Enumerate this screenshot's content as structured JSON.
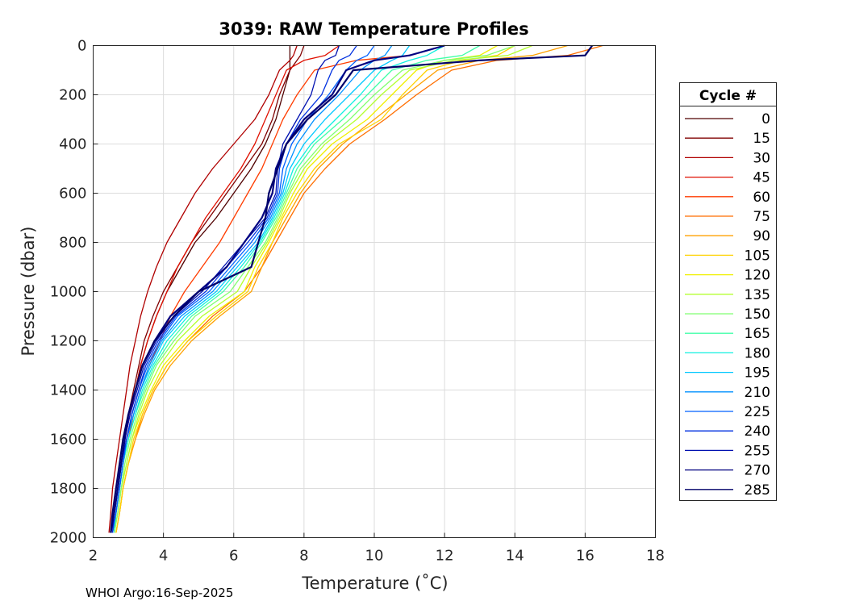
{
  "chart_data": {
    "type": "line",
    "title": "3039: RAW Temperature Profiles",
    "xlabel": "Temperature (˚C)",
    "ylabel": "Pressure (dbar)",
    "xlim": [
      2,
      18
    ],
    "ylim": [
      2000,
      0
    ],
    "y_reversed": true,
    "grid": true,
    "xticks": [
      2,
      4,
      6,
      8,
      10,
      12,
      14,
      16,
      18
    ],
    "yticks": [
      0,
      200,
      400,
      600,
      800,
      1000,
      1200,
      1400,
      1600,
      1800,
      2000
    ],
    "legend": {
      "title": "Cycle #",
      "placement": "right-outside",
      "entries": [
        "0",
        "15",
        "30",
        "45",
        "60",
        "75",
        "90",
        "105",
        "120",
        "135",
        "150",
        "165",
        "180",
        "195",
        "210",
        "225",
        "240",
        "255",
        "270",
        "285"
      ],
      "colors": [
        "#500000",
        "#800000",
        "#b00000",
        "#e01000",
        "#ff3c00",
        "#ff6e00",
        "#ffa000",
        "#ffd200",
        "#f0f000",
        "#b4ff30",
        "#80ff70",
        "#40ffa8",
        "#10f0e0",
        "#00c8ff",
        "#0090ff",
        "#0060ff",
        "#0030e0",
        "#0010b0",
        "#000080",
        "#00006a"
      ]
    },
    "pressure": [
      0,
      40,
      60,
      100,
      200,
      300,
      400,
      500,
      600,
      700,
      800,
      900,
      1000,
      1100,
      1200,
      1300,
      1400,
      1500,
      1600,
      1700,
      1800,
      1900,
      1980
    ],
    "series": [
      {
        "name": "0",
        "temperature": [
          7.6,
          7.6,
          7.6,
          7.6,
          7.4,
          7.2,
          6.9,
          6.5,
          6.0,
          5.5,
          4.9,
          4.5,
          4.1,
          3.8,
          3.55,
          3.35,
          3.2,
          3.05,
          2.9,
          2.8,
          2.7,
          2.6,
          2.5
        ]
      },
      {
        "name": "15",
        "temperature": [
          8.0,
          7.9,
          7.8,
          7.6,
          7.3,
          7.1,
          6.8,
          6.3,
          5.8,
          5.3,
          4.8,
          4.4,
          4.0,
          3.7,
          3.45,
          3.3,
          3.15,
          3.0,
          2.85,
          2.75,
          2.65,
          2.55,
          2.5
        ]
      },
      {
        "name": "30",
        "temperature": [
          7.8,
          7.7,
          7.6,
          7.3,
          7.0,
          6.6,
          6.0,
          5.4,
          4.9,
          4.5,
          4.1,
          3.8,
          3.55,
          3.35,
          3.2,
          3.05,
          2.95,
          2.85,
          2.75,
          2.65,
          2.55,
          2.5,
          2.45
        ]
      },
      {
        "name": "45",
        "temperature": [
          9.0,
          8.6,
          8.0,
          7.5,
          7.2,
          6.9,
          6.6,
          6.2,
          5.7,
          5.2,
          4.8,
          4.4,
          4.1,
          3.8,
          3.55,
          3.35,
          3.2,
          3.05,
          2.9,
          2.8,
          2.7,
          2.6,
          2.55
        ]
      },
      {
        "name": "60",
        "temperature": [
          12.0,
          11.0,
          9.5,
          8.3,
          7.8,
          7.4,
          7.1,
          6.8,
          6.4,
          6.0,
          5.6,
          5.1,
          4.6,
          4.2,
          3.9,
          3.6,
          3.35,
          3.15,
          3.0,
          2.85,
          2.75,
          2.65,
          2.6
        ]
      },
      {
        "name": "75",
        "temperature": [
          16.5,
          15.5,
          13.5,
          12.2,
          11.2,
          10.3,
          9.3,
          8.6,
          8.0,
          7.6,
          7.2,
          6.8,
          6.3,
          5.4,
          4.7,
          4.1,
          3.7,
          3.4,
          3.2,
          3.0,
          2.85,
          2.75,
          2.65
        ]
      },
      {
        "name": "90",
        "temperature": [
          15.5,
          14.5,
          13.0,
          11.8,
          10.9,
          10.0,
          9.1,
          8.4,
          7.9,
          7.5,
          7.1,
          6.8,
          6.5,
          5.6,
          4.8,
          4.2,
          3.75,
          3.45,
          3.2,
          3.0,
          2.85,
          2.75,
          2.65
        ]
      },
      {
        "name": "105",
        "temperature": [
          14.0,
          13.5,
          12.5,
          11.5,
          10.8,
          10.2,
          9.0,
          8.3,
          7.8,
          7.4,
          7.1,
          6.7,
          6.4,
          5.5,
          4.7,
          4.1,
          3.7,
          3.4,
          3.15,
          3.0,
          2.85,
          2.75,
          2.65
        ]
      },
      {
        "name": "120",
        "temperature": [
          13.5,
          13.0,
          12.0,
          11.2,
          10.5,
          9.8,
          8.8,
          8.1,
          7.7,
          7.35,
          7.0,
          6.6,
          6.3,
          5.3,
          4.6,
          4.0,
          3.65,
          3.35,
          3.1,
          2.95,
          2.8,
          2.7,
          2.6
        ]
      },
      {
        "name": "135",
        "temperature": [
          14.5,
          13.8,
          12.3,
          11.0,
          10.2,
          9.5,
          8.6,
          8.0,
          7.6,
          7.3,
          6.95,
          6.5,
          6.1,
          5.1,
          4.4,
          3.9,
          3.55,
          3.3,
          3.1,
          2.95,
          2.8,
          2.7,
          2.6
        ]
      },
      {
        "name": "150",
        "temperature": [
          14.0,
          13.2,
          12.0,
          10.8,
          10.0,
          9.3,
          8.5,
          7.9,
          7.55,
          7.25,
          6.9,
          6.4,
          5.9,
          4.9,
          4.3,
          3.8,
          3.5,
          3.25,
          3.05,
          2.9,
          2.8,
          2.7,
          2.6
        ]
      },
      {
        "name": "165",
        "temperature": [
          13.0,
          12.5,
          11.5,
          10.5,
          9.8,
          9.1,
          8.3,
          7.8,
          7.5,
          7.2,
          6.8,
          6.3,
          5.7,
          4.8,
          4.2,
          3.75,
          3.45,
          3.2,
          3.0,
          2.85,
          2.75,
          2.65,
          2.6
        ]
      },
      {
        "name": "180",
        "temperature": [
          12.0,
          11.5,
          11.0,
          10.2,
          9.6,
          8.9,
          8.2,
          7.7,
          7.45,
          7.15,
          6.75,
          6.2,
          5.6,
          4.7,
          4.1,
          3.7,
          3.4,
          3.2,
          3.0,
          2.85,
          2.75,
          2.65,
          2.55
        ]
      },
      {
        "name": "195",
        "temperature": [
          11.0,
          10.8,
          10.5,
          10.0,
          9.3,
          8.6,
          8.0,
          7.6,
          7.4,
          7.1,
          6.7,
          6.1,
          5.5,
          4.6,
          4.0,
          3.65,
          3.35,
          3.15,
          2.95,
          2.85,
          2.75,
          2.65,
          2.55
        ]
      },
      {
        "name": "210",
        "temperature": [
          10.5,
          10.3,
          10.0,
          9.6,
          9.0,
          8.3,
          7.8,
          7.5,
          7.35,
          7.05,
          6.6,
          6.0,
          5.4,
          4.5,
          3.95,
          3.6,
          3.35,
          3.15,
          2.95,
          2.85,
          2.75,
          2.65,
          2.55
        ]
      },
      {
        "name": "225",
        "temperature": [
          10.0,
          9.8,
          9.5,
          9.2,
          8.7,
          8.1,
          7.65,
          7.4,
          7.3,
          7.0,
          6.5,
          5.9,
          5.3,
          4.4,
          3.9,
          3.55,
          3.3,
          3.1,
          2.95,
          2.85,
          2.75,
          2.65,
          2.55
        ]
      },
      {
        "name": "240",
        "temperature": [
          9.5,
          9.3,
          9.0,
          8.8,
          8.5,
          7.9,
          7.5,
          7.3,
          7.25,
          6.95,
          6.4,
          5.8,
          5.2,
          4.35,
          3.85,
          3.5,
          3.3,
          3.1,
          2.95,
          2.8,
          2.7,
          2.6,
          2.55
        ]
      },
      {
        "name": "255",
        "temperature": [
          9.0,
          8.9,
          8.6,
          8.4,
          8.2,
          7.8,
          7.4,
          7.25,
          7.2,
          6.9,
          6.3,
          5.7,
          5.1,
          4.3,
          3.8,
          3.45,
          3.25,
          3.05,
          2.9,
          2.8,
          2.7,
          2.6,
          2.5
        ]
      },
      {
        "name": "270",
        "temperature": [
          12.0,
          11.0,
          10.0,
          9.2,
          8.8,
          8.0,
          7.5,
          7.2,
          7.1,
          6.8,
          6.3,
          5.8,
          5.0,
          4.2,
          3.75,
          3.4,
          3.2,
          3.0,
          2.9,
          2.8,
          2.7,
          2.6,
          2.5
        ]
      },
      {
        "name": "285",
        "temperature": [
          16.2,
          16.0,
          13.0,
          9.4,
          8.9,
          8.1,
          7.5,
          7.25,
          7.0,
          6.9,
          6.7,
          6.5,
          5.0,
          4.3,
          3.75,
          3.4,
          3.2,
          3.0,
          2.85,
          2.75,
          2.65,
          2.55,
          2.5
        ]
      }
    ]
  },
  "footer": "WHOI Argo:16-Sep-2025"
}
